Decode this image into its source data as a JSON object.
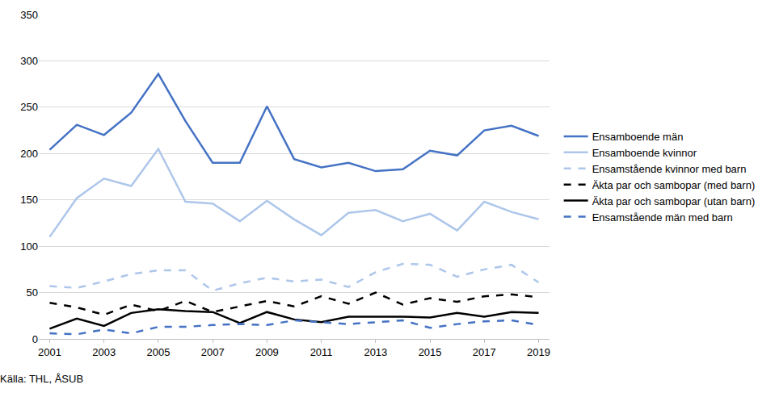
{
  "chart_data": {
    "type": "line",
    "x": [
      2001,
      2002,
      2003,
      2004,
      2005,
      2006,
      2007,
      2008,
      2009,
      2010,
      2011,
      2012,
      2013,
      2014,
      2015,
      2016,
      2017,
      2018,
      2019
    ],
    "series": [
      {
        "name": "Ensamboende män",
        "color": "#4472c4",
        "line_style": "solid",
        "values": [
          204,
          231,
          220,
          244,
          286,
          235,
          190,
          190,
          251,
          194,
          185,
          190,
          181,
          183,
          203,
          198,
          225,
          230,
          219
        ]
      },
      {
        "name": "Ensamboende kvinnor",
        "color": "#adc6ea",
        "line_style": "solid",
        "values": [
          110,
          152,
          173,
          165,
          205,
          148,
          146,
          127,
          149,
          129,
          112,
          136,
          139,
          127,
          135,
          117,
          148,
          137,
          129
        ]
      },
      {
        "name": "Ensamstående kvinnor med barn",
        "color": "#adc6ea",
        "line_style": "dash",
        "values": [
          57,
          55,
          62,
          70,
          74,
          74,
          52,
          60,
          66,
          62,
          64,
          56,
          72,
          81,
          80,
          67,
          75,
          80,
          61
        ]
      },
      {
        "name": "Äkta par och sambopar (med barn)",
        "color": "#000000",
        "line_style": "dash",
        "values": [
          39,
          34,
          26,
          37,
          30,
          41,
          29,
          35,
          41,
          35,
          46,
          38,
          50,
          37,
          44,
          40,
          46,
          48,
          45
        ]
      },
      {
        "name": "Äkta par och sambopar (utan barn)",
        "color": "#000000",
        "line_style": "solid",
        "values": [
          11,
          22,
          14,
          28,
          32,
          30,
          29,
          17,
          29,
          21,
          18,
          24,
          24,
          24,
          23,
          28,
          24,
          29,
          28
        ]
      },
      {
        "name": "Ensamstående män med barn",
        "color": "#4472c4",
        "line_style": "dash",
        "values": [
          6,
          5,
          10,
          6,
          13,
          13,
          15,
          16,
          15,
          20,
          18,
          16,
          18,
          20,
          12,
          16,
          19,
          20,
          15
        ]
      }
    ],
    "xlim": [
      2000.6,
      2019.4
    ],
    "xticks": [
      2001,
      2003,
      2005,
      2007,
      2009,
      2011,
      2013,
      2015,
      2017,
      2019
    ],
    "ylim": [
      0,
      350
    ],
    "yticks": [
      0,
      50,
      100,
      150,
      200,
      250,
      300,
      350
    ],
    "grid": true,
    "legend": "right",
    "annotations": [
      {
        "text": "Källa: THL, ÅSUB"
      }
    ]
  }
}
